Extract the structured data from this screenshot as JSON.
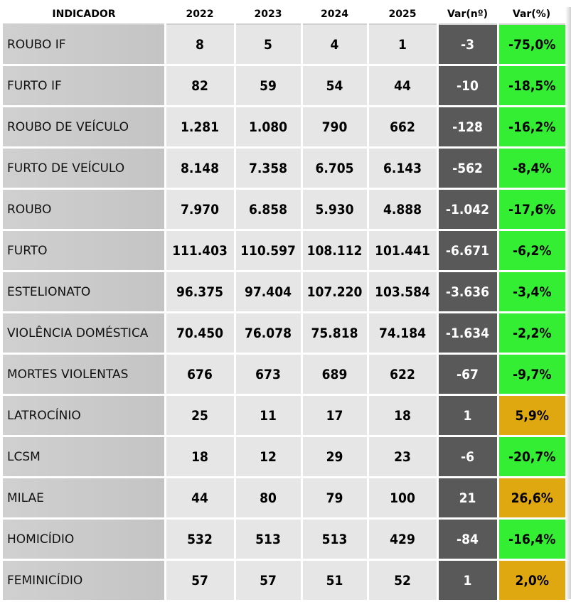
{
  "headers": [
    "INDICADOR",
    "2022",
    "2023",
    "2024",
    "2025",
    "Var(nº)",
    "Var(%)"
  ],
  "colors": {
    "green": "#33ee33",
    "gold": "#e0a810",
    "dark": "#595959"
  },
  "rows": [
    {
      "name": "ROUBO IF",
      "y2022": "8",
      "y2023": "5",
      "y2024": "4",
      "y2025": "1",
      "var_n": "-3",
      "var_p": "-75,0%",
      "var_color": "#33ee33"
    },
    {
      "name": "FURTO IF",
      "y2022": "82",
      "y2023": "59",
      "y2024": "54",
      "y2025": "44",
      "var_n": "-10",
      "var_p": "-18,5%",
      "var_color": "#33ee33"
    },
    {
      "name": "ROUBO DE VEÍCULO",
      "y2022": "1.281",
      "y2023": "1.080",
      "y2024": "790",
      "y2025": "662",
      "var_n": "-128",
      "var_p": "-16,2%",
      "var_color": "#33ee33"
    },
    {
      "name": "FURTO DE VEÍCULO",
      "y2022": "8.148",
      "y2023": "7.358",
      "y2024": "6.705",
      "y2025": "6.143",
      "var_n": "-562",
      "var_p": "-8,4%",
      "var_color": "#33ee33"
    },
    {
      "name": "ROUBO",
      "y2022": "7.970",
      "y2023": "6.858",
      "y2024": "5.930",
      "y2025": "4.888",
      "var_n": "-1.042",
      "var_p": "-17,6%",
      "var_color": "#33ee33"
    },
    {
      "name": "FURTO",
      "y2022": "111.403",
      "y2023": "110.597",
      "y2024": "108.112",
      "y2025": "101.441",
      "var_n": "-6.671",
      "var_p": "-6,2%",
      "var_color": "#33ee33"
    },
    {
      "name": "ESTELIONATO",
      "y2022": "96.375",
      "y2023": "97.404",
      "y2024": "107.220",
      "y2025": "103.584",
      "var_n": "-3.636",
      "var_p": "-3,4%",
      "var_color": "#33ee33"
    },
    {
      "name": "VIOLÊNCIA DOMÉSTICA",
      "y2022": "70.450",
      "y2023": "76.078",
      "y2024": "75.818",
      "y2025": "74.184",
      "var_n": "-1.634",
      "var_p": "-2,2%",
      "var_color": "#33ee33"
    },
    {
      "name": "MORTES VIOLENTAS",
      "y2022": "676",
      "y2023": "673",
      "y2024": "689",
      "y2025": "622",
      "var_n": "-67",
      "var_p": "-9,7%",
      "var_color": "#33ee33"
    },
    {
      "name": "LATROCÍNIO",
      "y2022": "25",
      "y2023": "11",
      "y2024": "17",
      "y2025": "18",
      "var_n": "1",
      "var_p": "5,9%",
      "var_color": "#e0a810"
    },
    {
      "name": "LCSM",
      "y2022": "18",
      "y2023": "12",
      "y2024": "29",
      "y2025": "23",
      "var_n": "-6",
      "var_p": "-20,7%",
      "var_color": "#33ee33"
    },
    {
      "name": "MILAE",
      "y2022": "44",
      "y2023": "80",
      "y2024": "79",
      "y2025": "100",
      "var_n": "21",
      "var_p": "26,6%",
      "var_color": "#e0a810"
    },
    {
      "name": "HOMICÍDIO",
      "y2022": "532",
      "y2023": "513",
      "y2024": "513",
      "y2025": "429",
      "var_n": "-84",
      "var_p": "-16,4%",
      "var_color": "#33ee33"
    },
    {
      "name": "FEMINICÍDIO",
      "y2022": "57",
      "y2023": "57",
      "y2024": "51",
      "y2025": "52",
      "var_n": "1",
      "var_p": "2,0%",
      "var_color": "#e0a810"
    }
  ]
}
